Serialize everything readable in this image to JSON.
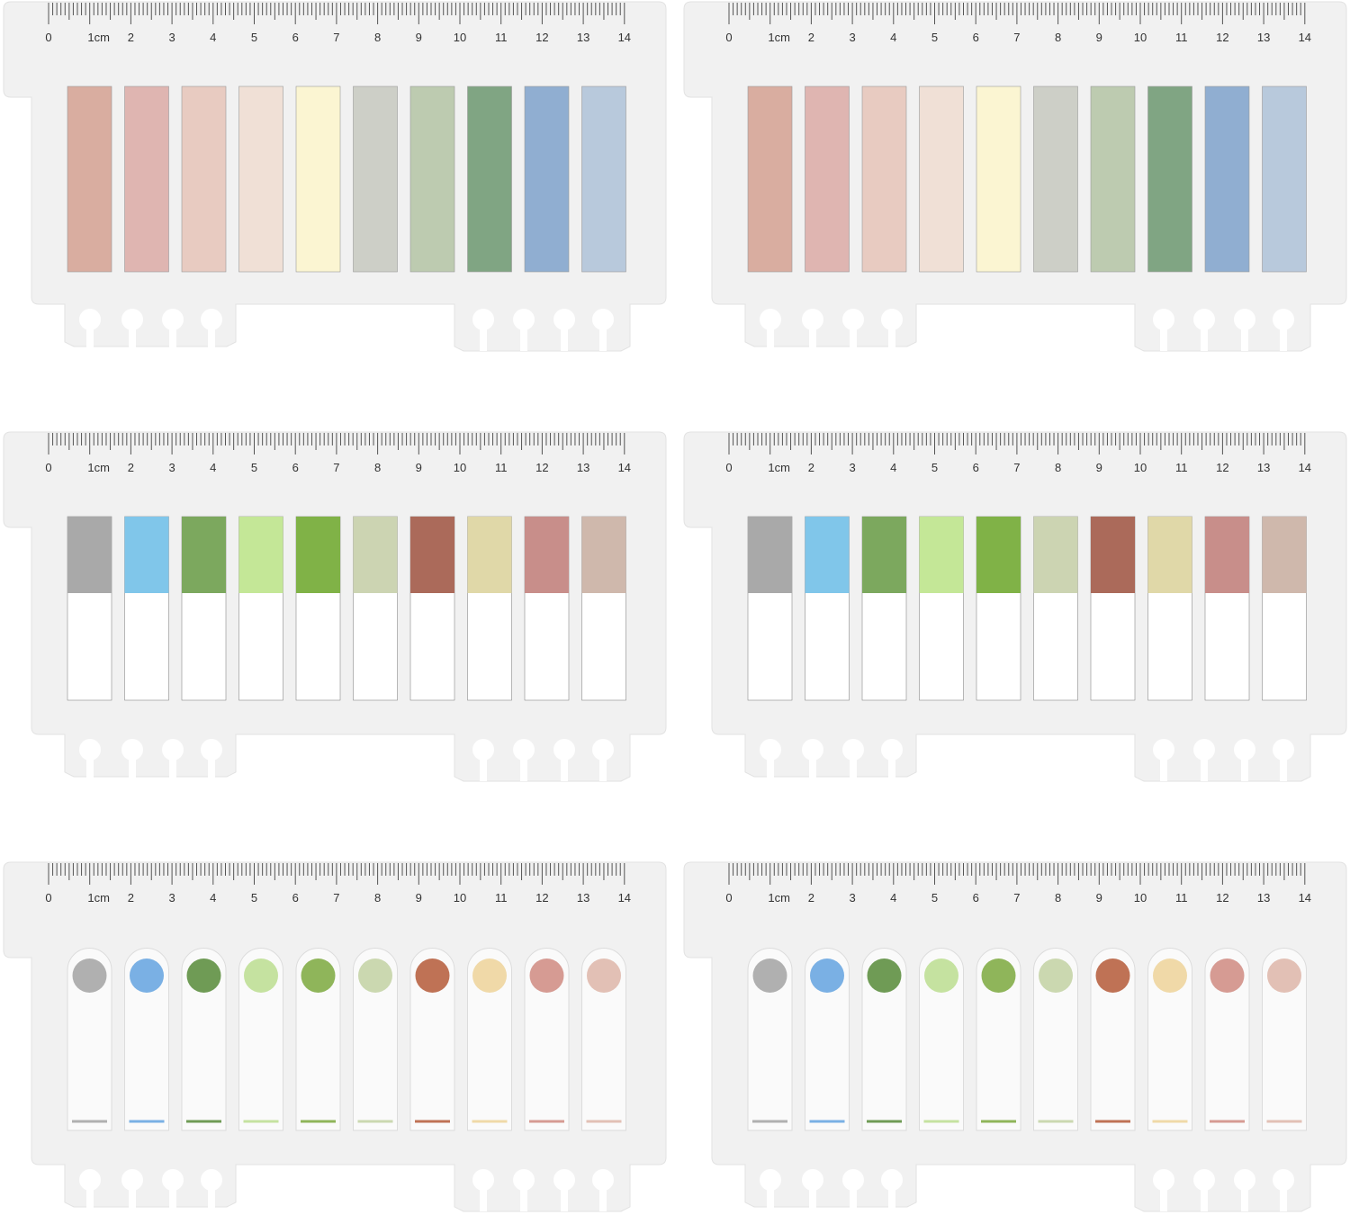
{
  "ruler": {
    "labels": [
      "0",
      "1cm",
      "2",
      "3",
      "4",
      "5",
      "6",
      "7",
      "8",
      "9",
      "10",
      "11",
      "12",
      "13",
      "14"
    ]
  }
}
